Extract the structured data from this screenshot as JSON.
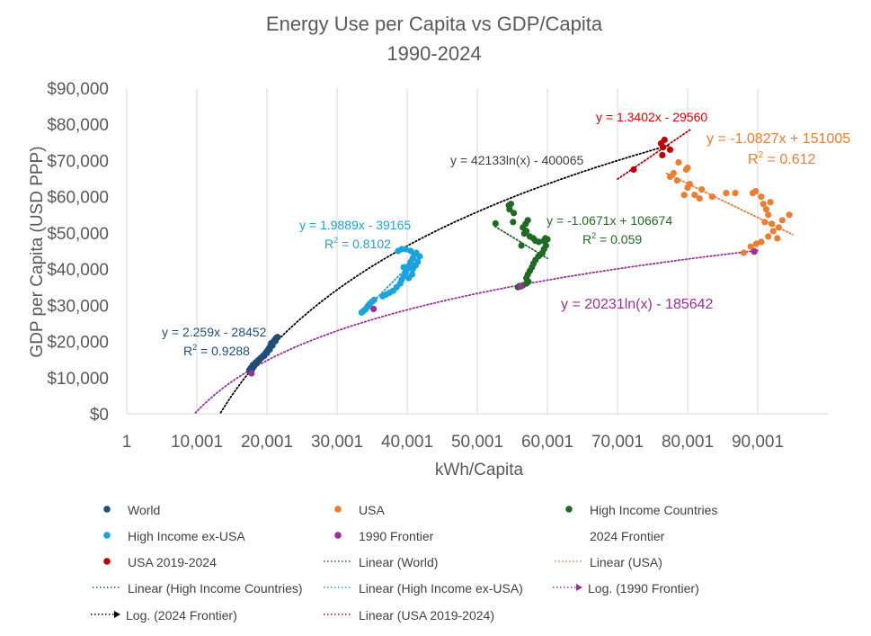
{
  "chart_data": {
    "type": "scatter",
    "title": "Energy Use per Capita vs GDP/Capita",
    "subtitle": "1990-2024",
    "xlabel": "kWh/Capita",
    "ylabel": "GDP per Capita (USD PPP)",
    "xlim": [
      1,
      100001
    ],
    "ylim": [
      0,
      90000
    ],
    "grid": "vertical",
    "legend_position": "bottom",
    "x_ticks": [
      1,
      10001,
      20001,
      30001,
      40001,
      50001,
      60001,
      70001,
      80001,
      90001
    ],
    "x_tick_labels": [
      "1",
      "10,001",
      "20,001",
      "30,001",
      "40,001",
      "50,001",
      "60,001",
      "70,001",
      "80,001",
      "90,001"
    ],
    "y_ticks": [
      0,
      10000,
      20000,
      30000,
      40000,
      50000,
      60000,
      70000,
      80000,
      90000
    ],
    "y_tick_labels": [
      "$0",
      "$10,000",
      "$20,000",
      "$30,000",
      "$40,000",
      "$50,000",
      "$60,000",
      "$70,000",
      "$80,000",
      "$90,000"
    ],
    "colors": {
      "world": "#1f4e79",
      "usa": "#ed7d31",
      "high_income": "#1e6b24",
      "hi_ex_usa": "#1aa3dc",
      "frontier_1990": "#9b2f9b",
      "frontier_2024": "#000000",
      "usa_recent": "#c00000",
      "axis_text": "#595959",
      "grid": "#d9d9d9"
    },
    "series": [
      {
        "name": "World",
        "key": "world",
        "marker": true,
        "points": [
          [
            17600,
            11500
          ],
          [
            17750,
            12000
          ],
          [
            17900,
            12400
          ],
          [
            18050,
            12900
          ],
          [
            18200,
            13300
          ],
          [
            18350,
            13700
          ],
          [
            18500,
            14100
          ],
          [
            18650,
            14400
          ],
          [
            18800,
            14700
          ],
          [
            18950,
            15000
          ],
          [
            19100,
            15400
          ],
          [
            19300,
            15700
          ],
          [
            19500,
            16100
          ],
          [
            19700,
            16500
          ],
          [
            19900,
            17000
          ],
          [
            20100,
            17500
          ],
          [
            20300,
            18100
          ],
          [
            20500,
            18700
          ],
          [
            20700,
            19300
          ],
          [
            20900,
            19900
          ],
          [
            21100,
            20400
          ],
          [
            21300,
            20900
          ],
          [
            21500,
            21200
          ],
          [
            21200,
            20100
          ],
          [
            20800,
            18900
          ],
          [
            20400,
            17800
          ],
          [
            20000,
            16800
          ],
          [
            19600,
            16000
          ],
          [
            19200,
            15500
          ],
          [
            18800,
            14900
          ],
          [
            18400,
            14200
          ],
          [
            18000,
            13500
          ],
          [
            17700,
            12700
          ],
          [
            17500,
            12100
          ],
          [
            20600,
            19500
          ]
        ]
      },
      {
        "name": "USA",
        "key": "usa",
        "marker": true,
        "points": [
          [
            88000,
            44500
          ],
          [
            89000,
            46200
          ],
          [
            89800,
            47000
          ],
          [
            90500,
            47500
          ],
          [
            91500,
            49000
          ],
          [
            92200,
            50500
          ],
          [
            92800,
            48500
          ],
          [
            93000,
            51500
          ],
          [
            92000,
            52500
          ],
          [
            93500,
            53500
          ],
          [
            94500,
            55000
          ],
          [
            91500,
            55000
          ],
          [
            91200,
            56500
          ],
          [
            90800,
            58000
          ],
          [
            91800,
            58500
          ],
          [
            90500,
            60000
          ],
          [
            89300,
            61000
          ],
          [
            89700,
            61500
          ],
          [
            86800,
            61000
          ],
          [
            83500,
            60000
          ],
          [
            81700,
            59500
          ],
          [
            81000,
            60500
          ],
          [
            79500,
            60500
          ],
          [
            80000,
            62500
          ],
          [
            80300,
            63500
          ],
          [
            78500,
            64500
          ],
          [
            77500,
            65500
          ],
          [
            78000,
            66500
          ],
          [
            79800,
            67500
          ],
          [
            80000,
            68000
          ],
          [
            78700,
            69500
          ],
          [
            82000,
            62000
          ],
          [
            85500,
            61000
          ],
          [
            91000,
            53000
          ],
          [
            89500,
            45000
          ]
        ]
      },
      {
        "name": "High Income Countries",
        "key": "high_income",
        "marker": true,
        "points": [
          [
            52600,
            52600
          ],
          [
            54500,
            57600
          ],
          [
            54800,
            58000
          ],
          [
            54600,
            56500
          ],
          [
            55200,
            55500
          ],
          [
            55100,
            53000
          ],
          [
            56500,
            51500
          ],
          [
            56700,
            49800
          ],
          [
            57000,
            50500
          ],
          [
            56900,
            52500
          ],
          [
            57200,
            53500
          ],
          [
            57500,
            49000
          ],
          [
            58000,
            48500
          ],
          [
            58300,
            47800
          ],
          [
            58800,
            47500
          ],
          [
            59500,
            47800
          ],
          [
            59700,
            48500
          ],
          [
            60000,
            48200
          ],
          [
            59800,
            46500
          ],
          [
            59500,
            45500
          ],
          [
            59300,
            44500
          ],
          [
            59000,
            44000
          ],
          [
            58700,
            43500
          ],
          [
            58300,
            42500
          ],
          [
            58000,
            41500
          ],
          [
            57800,
            40500
          ],
          [
            57500,
            39500
          ],
          [
            57200,
            38500
          ],
          [
            57000,
            37500
          ],
          [
            57300,
            36500
          ],
          [
            57000,
            36000
          ],
          [
            56500,
            35500
          ],
          [
            56000,
            35300
          ],
          [
            55800,
            35000
          ],
          [
            56300,
            46500
          ]
        ]
      },
      {
        "name": "High Income ex-USA",
        "key": "hi_ex_usa",
        "marker": true,
        "points": [
          [
            33500,
            28000
          ],
          [
            33800,
            28500
          ],
          [
            34100,
            29000
          ],
          [
            34300,
            29500
          ],
          [
            34500,
            30000
          ],
          [
            34700,
            30500
          ],
          [
            35000,
            31000
          ],
          [
            35300,
            31500
          ],
          [
            36500,
            32500
          ],
          [
            37000,
            33000
          ],
          [
            37500,
            33500
          ],
          [
            38000,
            34000
          ],
          [
            38500,
            35000
          ],
          [
            39000,
            36000
          ],
          [
            39200,
            37000
          ],
          [
            39500,
            38000
          ],
          [
            39800,
            39000
          ],
          [
            40000,
            40000
          ],
          [
            40300,
            41000
          ],
          [
            40500,
            42000
          ],
          [
            40800,
            43000
          ],
          [
            41000,
            44000
          ],
          [
            41300,
            44500
          ],
          [
            40500,
            45000
          ],
          [
            39800,
            45500
          ],
          [
            39200,
            45500
          ],
          [
            38700,
            45000
          ],
          [
            40000,
            40500
          ],
          [
            40800,
            40000
          ],
          [
            41200,
            41000
          ],
          [
            41500,
            42000
          ],
          [
            41800,
            43500
          ],
          [
            39500,
            40500
          ],
          [
            40200,
            37500
          ],
          [
            40700,
            38500
          ]
        ]
      },
      {
        "name": "1990 Frontier",
        "key": "frontier_1990",
        "marker": true,
        "points": [
          [
            17800,
            11200
          ],
          [
            35200,
            29000
          ],
          [
            56200,
            35200
          ],
          [
            89500,
            44800
          ]
        ]
      },
      {
        "name": "2024 Frontier",
        "key": "frontier_2024",
        "marker": false,
        "points": []
      },
      {
        "name": "USA 2019-2024",
        "key": "usa_recent",
        "marker": true,
        "points": [
          [
            72300,
            67500
          ],
          [
            76400,
            71500
          ],
          [
            77500,
            73000
          ],
          [
            76500,
            73700
          ],
          [
            76200,
            74700
          ],
          [
            76700,
            75700
          ]
        ]
      }
    ],
    "trendlines": [
      {
        "name": "Linear (World)",
        "key": "world",
        "type": "linear",
        "equation": "y = 2.259x - 28452",
        "r2": "0.9288",
        "x_range": [
          17500,
          21500
        ]
      },
      {
        "name": "Linear (USA)",
        "key": "usa",
        "type": "linear",
        "equation": "y = -1.0827x + 151005",
        "r2": "0.612",
        "x_range": [
          77000,
          95000
        ]
      },
      {
        "name": "Linear (High Income Countries)",
        "key": "high_income",
        "type": "linear",
        "equation": "y = -1.0671x + 106674",
        "r2": "0.059",
        "x_range": [
          52500,
          60000
        ]
      },
      {
        "name": "Linear (High Income ex-USA)",
        "key": "hi_ex_usa",
        "type": "linear",
        "equation": "y = 1.9889x - 39165",
        "r2": "0.8102",
        "x_range": [
          33500,
          41800
        ]
      },
      {
        "name": "Log. (1990 Frontier)",
        "key": "frontier_1990",
        "type": "log",
        "equation": "y = 20231ln(x) - 185642",
        "r2": null,
        "x_range": [
          9800,
          90000
        ]
      },
      {
        "name": "Log. (2024 Frontier)",
        "key": "frontier_2024",
        "type": "log",
        "equation": "y = 42133ln(x) - 400065",
        "r2": null,
        "x_range": [
          13400,
          77500
        ]
      },
      {
        "name": "Linear (USA 2019-2024)",
        "key": "usa_recent",
        "type": "linear",
        "equation": "y = 1.3402x - 29560",
        "r2": null,
        "x_range": [
          70000,
          80500
        ]
      }
    ],
    "legend": [
      {
        "label": "World",
        "key": "world",
        "kind": "marker"
      },
      {
        "label": "USA",
        "key": "usa",
        "kind": "marker"
      },
      {
        "label": "High Income Countries",
        "key": "high_income",
        "kind": "marker"
      },
      {
        "label": "High Income ex-USA",
        "key": "hi_ex_usa",
        "kind": "marker"
      },
      {
        "label": "1990 Frontier",
        "key": "frontier_1990",
        "kind": "marker"
      },
      {
        "label": "2024 Frontier",
        "key": "frontier_2024",
        "kind": "none"
      },
      {
        "label": "USA 2019-2024",
        "key": "usa_recent",
        "kind": "marker"
      },
      {
        "label": "Linear (World)",
        "key": "world",
        "kind": "line"
      },
      {
        "label": "Linear (USA)",
        "key": "usa",
        "kind": "line"
      },
      {
        "label": "Linear (High Income Countries)",
        "key": "high_income",
        "kind": "line"
      },
      {
        "label": "Linear (High Income ex-USA)",
        "key": "hi_ex_usa",
        "kind": "line"
      },
      {
        "label": "Log. (1990 Frontier)",
        "key": "frontier_1990",
        "kind": "arrow"
      },
      {
        "label": "Log. (2024 Frontier)",
        "key": "frontier_2024",
        "kind": "arrow"
      },
      {
        "label": "Linear (USA 2019-2024)",
        "key": "usa_recent",
        "kind": "line"
      }
    ]
  }
}
